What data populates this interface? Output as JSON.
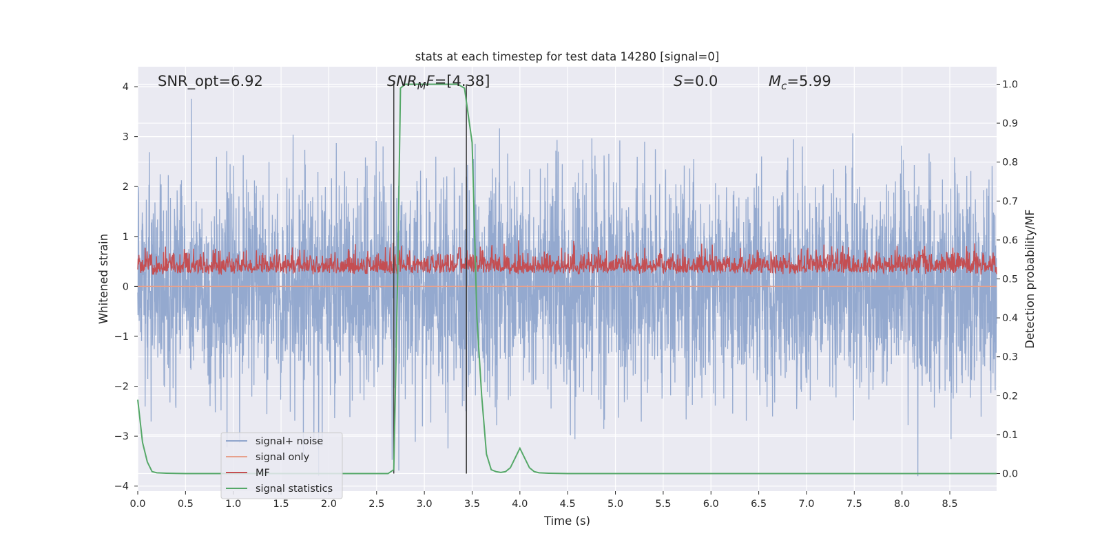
{
  "chart_data": {
    "type": "line",
    "title": "stats at each timestep for test data 14280 [signal=0]",
    "xlabel": "Time (s)",
    "ylabel": "Whitened strain",
    "ylabel_right": "Detection probability/MF",
    "xlim": [
      0.0,
      8.99
    ],
    "ylim": [
      -4.1,
      4.4
    ],
    "ylim_right": [
      -0.045,
      1.045
    ],
    "xticks": [
      "0.0",
      "0.5",
      "1.0",
      "1.5",
      "2.0",
      "2.5",
      "3.0",
      "3.5",
      "4.0",
      "4.5",
      "5.0",
      "5.5",
      "6.0",
      "6.5",
      "7.0",
      "7.5",
      "8.0",
      "8.5"
    ],
    "yticks_left": [
      "4",
      "3",
      "2",
      "1",
      "0",
      "−1",
      "−2",
      "−3",
      "−4"
    ],
    "yticks_right": [
      "1.0",
      "0.9",
      "0.8",
      "0.7",
      "0.6",
      "0.5",
      "0.4",
      "0.3",
      "0.2",
      "0.1",
      "0.0"
    ],
    "grid": true,
    "legend_position": "lower-left",
    "annotations": {
      "snr_opt": "SNR_opt=6.92",
      "snr_mf_italic": "SNR",
      "snr_mf_sub": "M",
      "snr_mf_rest_italic": "F",
      "snr_mf_value": "=[4.38]",
      "s_italic": "S",
      "s_value": "=0.0",
      "mc_italic": "M",
      "mc_sub": "c",
      "mc_value": "=5.99"
    },
    "vertical_lines_x": [
      2.68,
      3.44,
      3.44
    ],
    "series": [
      {
        "name": "signal+ noise",
        "color": "#8fa5cc",
        "axis": "left",
        "description_values": "whitened strain noise, roughly within [-3.8, 4.0], dense oscillation across 0.0-8.99 s"
      },
      {
        "name": "signal only",
        "color": "#e7a18c",
        "axis": "left",
        "values_constant": 0.0
      },
      {
        "name": "MF",
        "color": "#c44e52",
        "axis": "right",
        "range": [
          0.5,
          0.6
        ]
      },
      {
        "name": "signal statistics",
        "color": "#55a868",
        "axis": "right",
        "x": [
          0.0,
          0.05,
          0.1,
          0.15,
          0.2,
          0.3,
          0.5,
          1.0,
          1.5,
          2.0,
          2.5,
          2.62,
          2.68,
          2.72,
          2.75,
          2.8,
          3.0,
          3.2,
          3.35,
          3.42,
          3.5,
          3.55,
          3.6,
          3.65,
          3.7,
          3.75,
          3.8,
          3.85,
          3.9,
          3.95,
          4.0,
          4.05,
          4.1,
          4.15,
          4.2,
          4.3,
          4.5,
          5.0,
          6.0,
          7.0,
          8.0,
          8.99
        ],
        "y": [
          0.19,
          0.08,
          0.03,
          0.005,
          0.002,
          0.001,
          0.0,
          0.0,
          0.0,
          0.0,
          0.0,
          0.0,
          0.01,
          0.5,
          0.99,
          1.0,
          1.0,
          1.0,
          1.0,
          0.99,
          0.85,
          0.4,
          0.2,
          0.05,
          0.01,
          0.005,
          0.003,
          0.005,
          0.015,
          0.04,
          0.065,
          0.04,
          0.015,
          0.005,
          0.002,
          0.001,
          0.0,
          0.0,
          0.0,
          0.0,
          0.0,
          0.0
        ]
      }
    ]
  },
  "colors": {
    "plot_background": "#eaeaf2",
    "grid": "#ffffff",
    "vline": "#404040"
  }
}
